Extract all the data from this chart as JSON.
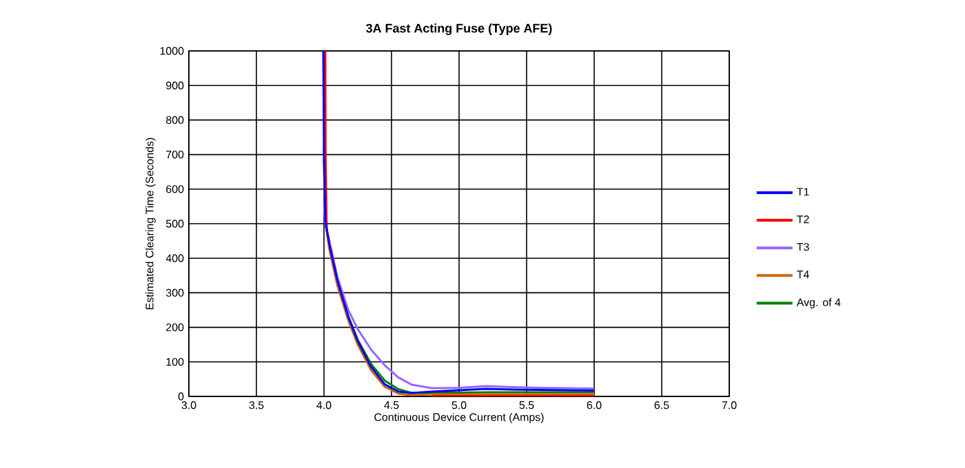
{
  "chart_data": {
    "type": "line",
    "title": "3A Fast Acting Fuse (Type AFE)",
    "xlabel": "Continuous Device Current (Amps)",
    "ylabel": "Estimated Clearing Time (Seconds)",
    "xlim": [
      3.0,
      7.0
    ],
    "ylim": [
      0,
      1000
    ],
    "xticks": [
      {
        "value": 3.0,
        "label": "3.0"
      },
      {
        "value": 3.5,
        "label": "3.5"
      },
      {
        "value": 4.0,
        "label": "4.0"
      },
      {
        "value": 4.5,
        "label": "4.5"
      },
      {
        "value": 5.0,
        "label": "5.0"
      },
      {
        "value": 5.5,
        "label": "5.5"
      },
      {
        "value": 6.0,
        "label": "6.0"
      },
      {
        "value": 6.5,
        "label": "6.5"
      },
      {
        "value": 7.0,
        "label": "7.0"
      }
    ],
    "yticks": [
      0,
      100,
      200,
      300,
      400,
      500,
      600,
      700,
      800,
      900,
      1000
    ],
    "grid": true,
    "legend": "right",
    "series": [
      {
        "name": "T1",
        "color": "#0000ff",
        "x": [
          3.995,
          4.0,
          4.01,
          4.04,
          4.1,
          4.18,
          4.25,
          4.35,
          4.45,
          4.55,
          4.65,
          4.8,
          5.0,
          5.2,
          5.4,
          5.6,
          5.8,
          6.0
        ],
        "values": [
          1000,
          700,
          510,
          440,
          335,
          231,
          160,
          85,
          35,
          14,
          10,
          14,
          18,
          22,
          20,
          19,
          18,
          17
        ]
      },
      {
        "name": "T2",
        "color": "#ff0000",
        "x": [
          4.01,
          4.012,
          4.02,
          4.05,
          4.1,
          4.18,
          4.25,
          4.35,
          4.45,
          4.55,
          4.65,
          4.8,
          5.0,
          5.2,
          5.4,
          5.6,
          5.8,
          6.0
        ],
        "values": [
          1000,
          700,
          480,
          null,
          null,
          null,
          null,
          null,
          null,
          null,
          null,
          1,
          1,
          1,
          1,
          1,
          1,
          1
        ]
      },
      {
        "name": "T3",
        "color": "#9966ff",
        "x": [
          4.0,
          4.01,
          4.04,
          4.1,
          4.18,
          4.25,
          4.35,
          4.45,
          4.55,
          4.65,
          4.8,
          5.0,
          5.2,
          5.4,
          5.6,
          5.8,
          6.0
        ],
        "values": [
          560,
          500,
          450,
          345,
          250,
          195,
          135,
          90,
          55,
          34,
          24,
          25,
          30,
          27,
          25,
          24,
          23
        ]
      },
      {
        "name": "T4",
        "color": "#cc6600",
        "x": [
          4.0,
          4.005,
          4.04,
          4.1,
          4.18,
          4.25,
          4.35,
          4.45,
          4.55,
          4.65,
          4.8,
          5.0,
          5.2,
          5.4,
          5.6,
          5.8,
          6.0
        ],
        "values": [
          720,
          520,
          425,
          320,
          220,
          150,
          75,
          28,
          8,
          4,
          6,
          6,
          6,
          6,
          6,
          6,
          6
        ]
      },
      {
        "name": "Avg. of 4",
        "color": "#008000",
        "x": [
          4.0,
          4.01,
          4.04,
          4.1,
          4.18,
          4.25,
          4.35,
          4.45,
          4.55,
          4.65,
          4.8,
          5.0,
          5.2,
          5.4,
          5.6,
          5.8,
          6.0
        ],
        "values": [
          690,
          500,
          434,
          332,
          232,
          164,
          93,
          46,
          21,
          10,
          11,
          11,
          12,
          12,
          12,
          12,
          12
        ]
      }
    ]
  }
}
